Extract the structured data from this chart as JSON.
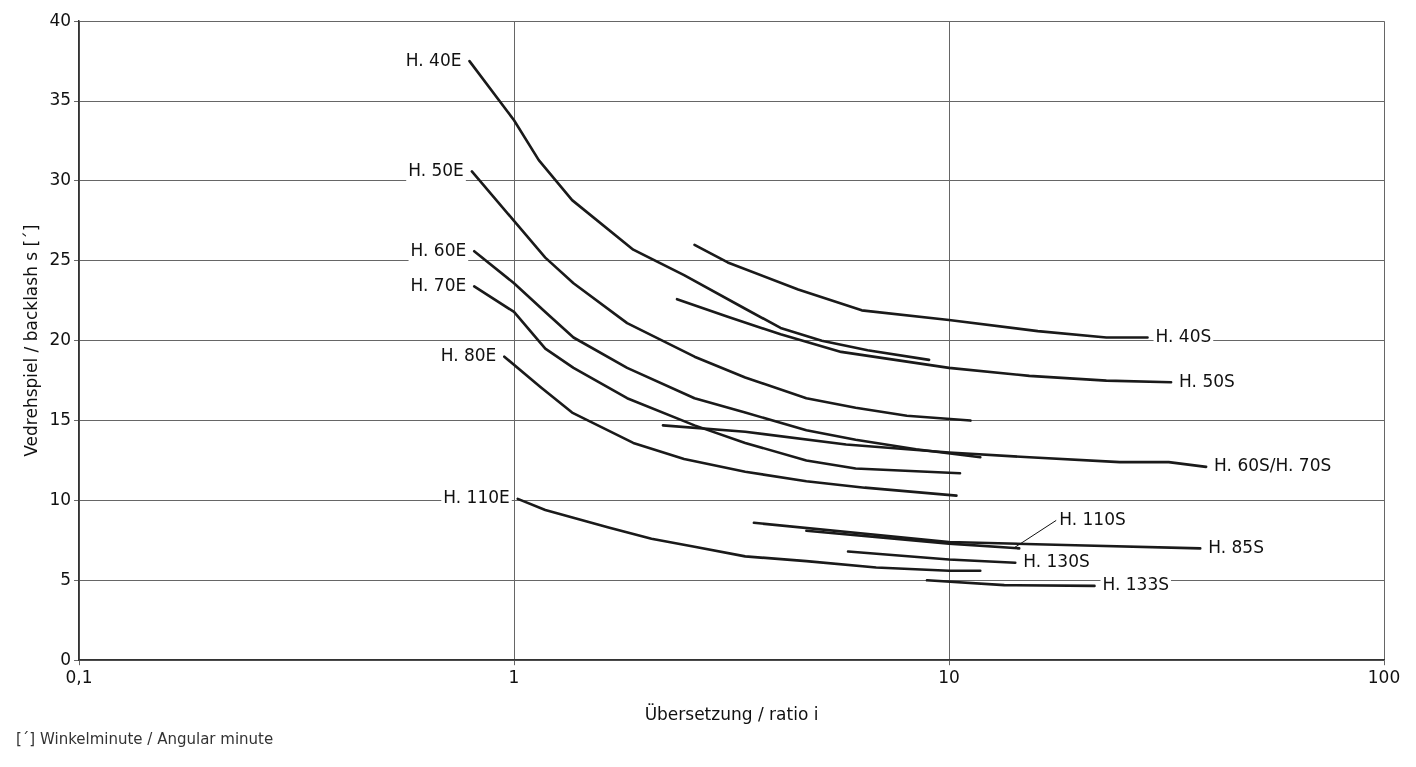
{
  "chart_data": {
    "type": "line",
    "xlabel": "Übersetzung / ratio i",
    "ylabel": "Vedrehspiel / backlash s [´]",
    "annotations": [
      "[´]  Winkelminute / Angular minute"
    ],
    "log": "x",
    "grid": true,
    "legend": false,
    "marker": "none",
    "line_style": "solid",
    "xlim": [
      0.1,
      100
    ],
    "xticks": [
      {
        "value": 0.1,
        "label": "0,1"
      },
      1,
      10,
      100
    ],
    "ylim": [
      0,
      40
    ],
    "yticks": [
      0,
      5,
      10,
      15,
      20,
      25,
      30,
      35,
      40
    ],
    "series": [
      {
        "name": "H. 40E",
        "color": "#1a1a1a",
        "x": [
          0.79,
          1,
          1.14,
          1.36,
          1.88,
          2.46,
          3.4,
          4.1,
          5.1,
          6.5,
          9.0
        ],
        "values": [
          37.5,
          33.8,
          31.3,
          28.8,
          25.7,
          24.1,
          22.0,
          20.8,
          20.0,
          19.4,
          18.8
        ]
      },
      {
        "name": "H. 50E",
        "color": "#1a1a1a",
        "x": [
          0.8,
          1,
          1.18,
          1.37,
          1.82,
          2.6,
          3.4,
          4.7,
          6.1,
          8.0,
          11.2
        ],
        "values": [
          30.6,
          27.5,
          25.2,
          23.6,
          21.1,
          19.0,
          17.7,
          16.4,
          15.8,
          15.3,
          15.0
        ]
      },
      {
        "name": "H. 60E",
        "color": "#1a1a1a",
        "x": [
          0.81,
          1,
          1.18,
          1.37,
          1.82,
          2.6,
          3.4,
          4.7,
          6.1,
          8.4,
          11.8
        ],
        "values": [
          25.6,
          23.6,
          21.8,
          20.2,
          18.3,
          16.4,
          15.5,
          14.4,
          13.8,
          13.2,
          12.7
        ]
      },
      {
        "name": "H. 70E",
        "color": "#1a1a1a",
        "x": [
          0.81,
          1,
          1.18,
          1.37,
          1.82,
          2.6,
          3.4,
          4.7,
          6.1,
          10.6
        ],
        "values": [
          23.4,
          21.8,
          19.5,
          18.3,
          16.4,
          14.7,
          13.6,
          12.5,
          12.0,
          11.7
        ]
      },
      {
        "name": "H. 80E",
        "color": "#1a1a1a",
        "x": [
          0.95,
          1.15,
          1.36,
          1.88,
          2.46,
          3.4,
          4.7,
          6.4,
          10.4
        ],
        "values": [
          19.0,
          17.1,
          15.5,
          13.6,
          12.6,
          11.8,
          11.2,
          10.8,
          10.3
        ]
      },
      {
        "name": "H. 110E",
        "color": "#1a1a1a",
        "x": [
          1.02,
          1.18,
          1.65,
          2.07,
          2.6,
          3.4,
          4.7,
          6.8,
          10,
          11.8
        ],
        "values": [
          10.1,
          9.4,
          8.3,
          7.6,
          7.1,
          6.5,
          6.2,
          5.8,
          5.6,
          5.6
        ]
      },
      {
        "name": "H. 40S",
        "color": "#1a1a1a",
        "x": [
          2.6,
          3.1,
          4.5,
          6.3,
          10,
          16,
          23,
          28.6
        ],
        "values": [
          26.0,
          24.9,
          23.2,
          21.9,
          21.3,
          20.6,
          20.2,
          20.2
        ]
      },
      {
        "name": "H. 50S",
        "color": "#1a1a1a",
        "x": [
          2.37,
          3.1,
          4.1,
          5.65,
          10,
          15.3,
          23,
          32.4
        ],
        "values": [
          22.6,
          21.5,
          20.4,
          19.3,
          18.3,
          17.8,
          17.5,
          17.4
        ]
      },
      {
        "name": "H. 60S/H. 70S",
        "color": "#1a1a1a",
        "x": [
          2.2,
          3.4,
          5.8,
          10,
          15.3,
          24.7,
          32,
          39
        ],
        "values": [
          14.7,
          14.3,
          13.5,
          13.0,
          12.7,
          12.4,
          12.4,
          12.1
        ]
      },
      {
        "name": "H. 110S",
        "color": "#1a1a1a",
        "x": [
          4.7,
          10,
          14.5
        ],
        "values": [
          8.1,
          7.3,
          7.0
        ]
      },
      {
        "name": "H. 85S",
        "color": "#1a1a1a",
        "x": [
          3.56,
          10,
          19.5,
          37.8
        ],
        "values": [
          8.6,
          7.4,
          7.2,
          7.0
        ]
      },
      {
        "name": "H. 130S",
        "color": "#1a1a1a",
        "x": [
          5.86,
          10,
          14.2
        ],
        "values": [
          6.8,
          6.3,
          6.1
        ]
      },
      {
        "name": "H. 133S",
        "color": "#1a1a1a",
        "x": [
          8.9,
          13.4,
          21.6
        ],
        "values": [
          5.0,
          4.7,
          4.65
        ]
      }
    ]
  }
}
